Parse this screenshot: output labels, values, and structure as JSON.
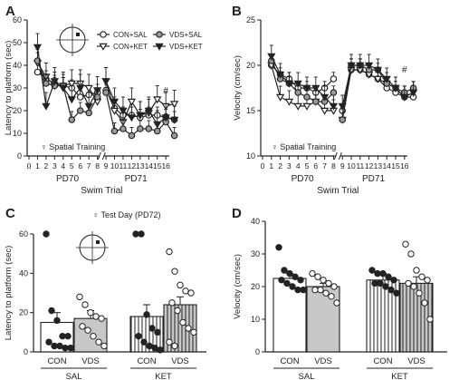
{
  "panels": {
    "a": "A",
    "b": "B",
    "c": "C",
    "d": "D"
  },
  "chart_data": [
    {
      "type": "line",
      "panel": "A",
      "ylabel": "Latency to platform (sec)",
      "xlabel": "Swim Trial",
      "ylim": [
        0,
        60
      ],
      "yticks": [
        "0",
        "10",
        "20",
        "30",
        "40",
        "50",
        "60"
      ],
      "xticks": [
        "0",
        "1",
        "2",
        "3",
        "4",
        "5",
        "6",
        "7",
        "8",
        "9",
        "10",
        "11",
        "12",
        "13",
        "14",
        "15",
        "16"
      ],
      "day_labels": [
        "PD70",
        "PD71"
      ],
      "annotation": "♀ Spatial Training",
      "sig_mark": "#",
      "legend_position": "top-right",
      "series": [
        {
          "name": "CON+SAL",
          "marker": "circle-open",
          "values": [
            37,
            34,
            32,
            31,
            30,
            26,
            27,
            28,
            29,
            21,
            18,
            18,
            17,
            18,
            18,
            17,
            16
          ]
        },
        {
          "name": "CON+KET",
          "marker": "triangle-down-open",
          "values": [
            41,
            35,
            31,
            31,
            32,
            32,
            30,
            24,
            33,
            20,
            15,
            24,
            18,
            19,
            25,
            22,
            23
          ]
        },
        {
          "name": "VDS+SAL",
          "marker": "circle-gray",
          "values": [
            42,
            32,
            31,
            31,
            16,
            20,
            19,
            26,
            28,
            11,
            12,
            9,
            12,
            12,
            11,
            15,
            9
          ]
        },
        {
          "name": "VDS+KET",
          "marker": "triangle-down-filled",
          "values": [
            48,
            22,
            33,
            30,
            25,
            30,
            22,
            29,
            33,
            24,
            20,
            17,
            18,
            20,
            14,
            17,
            16
          ]
        }
      ]
    },
    {
      "type": "line",
      "panel": "B",
      "ylabel": "Velocity (cm/sec)",
      "xlabel": "Swim Trial",
      "ylim": [
        10,
        25
      ],
      "yticks": [
        "10",
        "15",
        "20",
        "25"
      ],
      "xticks": [
        "0",
        "1",
        "2",
        "3",
        "4",
        "5",
        "6",
        "7",
        "8",
        "9",
        "10",
        "11",
        "12",
        "13",
        "14",
        "15",
        "16"
      ],
      "day_labels": [
        "PD70",
        "PD71"
      ],
      "annotation": "♀ Spatial Training",
      "sig_mark": "#",
      "series": [
        {
          "name": "CON+SAL",
          "marker": "circle-open",
          "values": [
            20,
            19,
            18.5,
            17.5,
            17.5,
            17,
            17.5,
            18.5,
            15,
            19.5,
            19.5,
            19,
            18.5,
            17.5,
            17,
            16.5,
            16.5
          ]
        },
        {
          "name": "CON+KET",
          "marker": "triangle-down-open",
          "values": [
            20,
            16.5,
            16,
            15.5,
            15.5,
            16,
            15,
            15,
            14,
            19.5,
            19.5,
            19,
            18.5,
            18,
            17.5,
            16.5,
            17
          ]
        },
        {
          "name": "VDS+SAL",
          "marker": "circle-gray",
          "values": [
            20.5,
            18.5,
            18,
            17,
            16.5,
            16,
            16,
            17,
            14,
            20,
            20,
            19.5,
            19.5,
            18,
            17.5,
            17,
            17.5
          ]
        },
        {
          "name": "VDS+KET",
          "marker": "triangle-down-filled",
          "values": [
            21,
            19,
            18,
            18,
            17.5,
            17.5,
            16.5,
            15.5,
            15.5,
            20,
            20,
            20,
            19.5,
            18.5,
            17.5,
            16.5,
            17
          ]
        }
      ]
    },
    {
      "type": "bar",
      "panel": "C",
      "title": "♀ Test Day (PD72)",
      "ylabel": "Latency to platform (sec)",
      "ylim": [
        0,
        60
      ],
      "yticks": [
        "0",
        "20",
        "40",
        "60"
      ],
      "categories": [
        "CON",
        "VDS",
        "CON",
        "VDS"
      ],
      "groups": [
        "SAL",
        "KET"
      ],
      "values": [
        15,
        17,
        18,
        24
      ],
      "errors": [
        5,
        4,
        6,
        4
      ],
      "points": [
        [
          60,
          21,
          16,
          8,
          8,
          5,
          3,
          3,
          2,
          2
        ],
        [
          28,
          24,
          20,
          18,
          17,
          13,
          11,
          8,
          5,
          3
        ],
        [
          60,
          60,
          19,
          12,
          10,
          8,
          5,
          3,
          2,
          1
        ],
        [
          51,
          41,
          34,
          31,
          30,
          25,
          21,
          15,
          12,
          10,
          5,
          3
        ]
      ]
    },
    {
      "type": "bar",
      "panel": "D",
      "ylabel": "Velocity (cm/sec)",
      "ylim": [
        0,
        40
      ],
      "yticks": [
        "0",
        "10",
        "20",
        "30",
        "40"
      ],
      "categories": [
        "CON",
        "VDS",
        "CON",
        "VDS"
      ],
      "groups": [
        "SAL",
        "KET"
      ],
      "values": [
        22.5,
        20,
        22,
        21
      ],
      "errors": [
        1.5,
        1,
        2,
        2
      ],
      "points": [
        [
          32,
          25,
          24,
          23,
          22,
          22,
          21,
          20,
          19,
          19
        ],
        [
          24,
          23,
          22,
          21,
          20,
          19,
          19,
          18,
          17,
          15
        ],
        [
          25,
          24,
          24,
          23,
          22,
          21,
          21,
          20,
          19,
          18
        ],
        [
          33,
          30,
          25,
          23,
          22,
          21,
          20,
          18,
          15,
          10
        ]
      ]
    }
  ]
}
